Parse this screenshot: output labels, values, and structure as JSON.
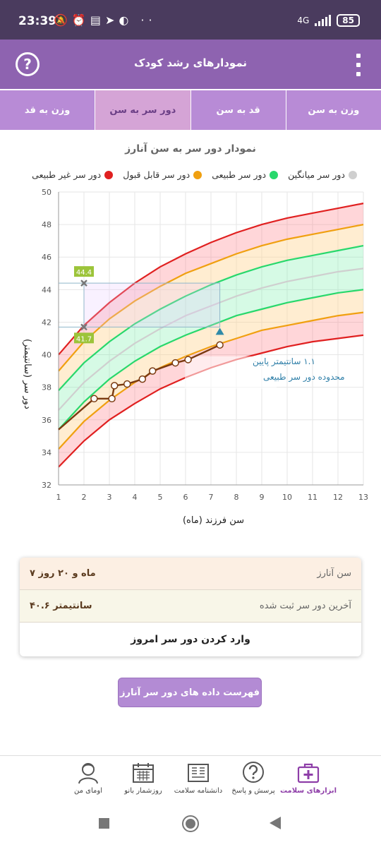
{
  "status_bar": {
    "time": "23:39",
    "icons_left": "🔕⏰▤➤◐ ··",
    "network": "4G",
    "battery": "85"
  },
  "app_bar": {
    "title": "نمودارهای رشد کودک",
    "help_glyph": "?"
  },
  "tabs": [
    {
      "label": "وزن به سن",
      "active": false
    },
    {
      "label": "قد به سن",
      "active": false
    },
    {
      "label": "دور سر به سن",
      "active": true
    },
    {
      "label": "وزن به قد",
      "active": false
    }
  ],
  "chart": {
    "title": "نمودار دور سر به سن آنارز",
    "legend": [
      {
        "label": "دور سر غیر طبیعی",
        "color": "#e02020"
      },
      {
        "label": "دور سر قابل قبول",
        "color": "#f0a010"
      },
      {
        "label": "دور سر طبیعی",
        "color": "#28d86c"
      },
      {
        "label": "دور سر میانگین",
        "color": "#cfcfcf"
      }
    ],
    "ylabel": "دور سر (سانتیمتر)",
    "xlabel": "سن فرزند (ماه)",
    "marker_top": "44.4",
    "marker_bottom": "41.7",
    "annotation_line1": "۱.۱ سانتیمتر پایین",
    "annotation_line2": "محدوده دور سر طبیعی"
  },
  "chart_data": {
    "type": "line",
    "xlim": [
      1,
      13
    ],
    "ylim": [
      32,
      50
    ],
    "x_ticks": [
      1,
      2,
      3,
      4,
      5,
      6,
      7,
      8,
      9,
      10,
      11,
      12,
      13
    ],
    "y_ticks": [
      32,
      34,
      36,
      38,
      40,
      42,
      44,
      46,
      48,
      50
    ],
    "x": [
      1,
      2,
      3,
      4,
      5,
      6,
      7,
      8,
      9,
      10,
      11,
      12,
      13
    ],
    "series": [
      {
        "color": "#e02020",
        "values": [
          40.0,
          41.8,
          43.2,
          44.4,
          45.4,
          46.2,
          46.9,
          47.5,
          48.0,
          48.4,
          48.7,
          49.0,
          49.3
        ]
      },
      {
        "color": "#f0a010",
        "values": [
          39.0,
          40.8,
          42.2,
          43.3,
          44.2,
          45.0,
          45.6,
          46.2,
          46.7,
          47.1,
          47.4,
          47.7,
          48.0
        ]
      },
      {
        "color": "#28d86c",
        "values": [
          37.8,
          39.5,
          40.8,
          41.9,
          42.8,
          43.6,
          44.3,
          44.9,
          45.4,
          45.8,
          46.1,
          46.4,
          46.7
        ]
      },
      {
        "color": "#cfcfcf",
        "values": [
          36.6,
          38.3,
          39.6,
          40.7,
          41.6,
          42.4,
          43.0,
          43.6,
          44.1,
          44.5,
          44.8,
          45.1,
          45.3
        ]
      },
      {
        "color": "#28d86c",
        "values": [
          35.4,
          37.1,
          38.5,
          39.6,
          40.5,
          41.2,
          41.8,
          42.4,
          42.8,
          43.2,
          43.5,
          43.8,
          44.0
        ]
      },
      {
        "color": "#f0a010",
        "values": [
          34.2,
          35.9,
          37.2,
          38.3,
          39.2,
          39.9,
          40.5,
          41.0,
          41.5,
          41.8,
          42.1,
          42.4,
          42.6
        ]
      },
      {
        "color": "#e02020",
        "values": [
          33.1,
          34.7,
          36.0,
          37.0,
          37.9,
          38.6,
          39.2,
          39.7,
          40.1,
          40.5,
          40.8,
          41.0,
          41.2
        ]
      }
    ],
    "child": {
      "color": "#7a3a10",
      "points": [
        [
          1,
          35.4
        ],
        [
          2.4,
          37.3
        ],
        [
          3.1,
          37.3
        ],
        [
          3.2,
          38.1
        ],
        [
          3.7,
          38.2
        ],
        [
          4.3,
          38.5
        ],
        [
          4.7,
          39.0
        ],
        [
          5.6,
          39.5
        ],
        [
          6.1,
          39.7
        ],
        [
          7.35,
          40.6
        ]
      ]
    },
    "markers": {
      "x": 2,
      "high": 44.4,
      "low": 41.7,
      "current_x": 7.35,
      "current_normal_low": 41.7
    }
  },
  "info": {
    "age_label": "سن آنارز",
    "age_value": "۷ ماه و ۲۰ روز",
    "last_label": "آخرین دور سر ثبت شده",
    "last_value": "۴۰.۶ سانتیمتر",
    "action": "وارد کردن دور سر امروز"
  },
  "list_button": "فهرست داده های دور سر آنارز",
  "bottom_nav": [
    {
      "label": "ابزارهای سلامت",
      "icon": "medical-kit-icon",
      "active": true
    },
    {
      "label": "پرسش و پاسخ",
      "icon": "question-bubble-icon",
      "active": false
    },
    {
      "label": "دانشنامه سلامت",
      "icon": "encyclopedia-icon",
      "active": false
    },
    {
      "label": "روزشمار بانو",
      "icon": "calendar-icon",
      "active": false
    },
    {
      "label": "اومای من",
      "icon": "user-avatar-icon",
      "active": false
    }
  ]
}
